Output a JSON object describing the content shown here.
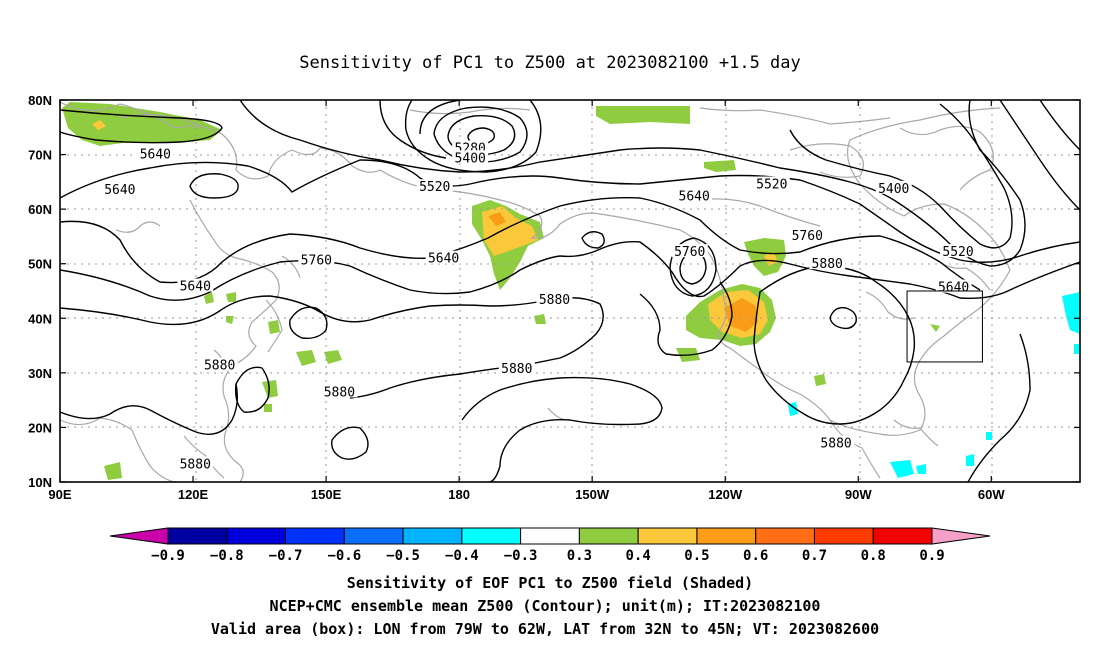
{
  "title": "Sensitivity of PC1 to Z500 at 2023082100 +1.5 day",
  "map": {
    "lat_labels": [
      "80N",
      "70N",
      "60N",
      "50N",
      "40N",
      "30N",
      "20N",
      "10N"
    ],
    "lon_labels": [
      "90E",
      "120E",
      "150E",
      "180",
      "150W",
      "120W",
      "90W",
      "60W"
    ],
    "contour_labels": [
      {
        "text": "5640",
        "lon": 111.5,
        "lat": 70.2
      },
      {
        "text": "5640",
        "lon": 103.5,
        "lat": 63.7
      },
      {
        "text": "5640",
        "lon": 120.5,
        "lat": 46.0
      },
      {
        "text": "5760",
        "lon": 147.8,
        "lat": 50.8
      },
      {
        "text": "5640",
        "lon": 176.5,
        "lat": 51.1
      },
      {
        "text": "5280",
        "lon": 182.5,
        "lat": 71.3
      },
      {
        "text": "5400",
        "lon": 182.5,
        "lat": 69.5
      },
      {
        "text": "5520",
        "lon": 174.5,
        "lat": 64.2
      },
      {
        "text": "5640",
        "lon": 233.0,
        "lat": 62.5
      },
      {
        "text": "5520",
        "lon": 250.5,
        "lat": 64.7
      },
      {
        "text": "5400",
        "lon": 278.0,
        "lat": 63.9
      },
      {
        "text": "5760",
        "lon": 232.0,
        "lat": 52.3
      },
      {
        "text": "5760",
        "lon": 258.5,
        "lat": 55.3
      },
      {
        "text": "5880",
        "lon": 263.0,
        "lat": 50.1
      },
      {
        "text": "5520",
        "lon": 292.5,
        "lat": 52.3
      },
      {
        "text": "5640",
        "lon": 291.5,
        "lat": 45.8
      },
      {
        "text": "5880",
        "lon": 201.5,
        "lat": 43.5
      },
      {
        "text": "5880",
        "lon": 126.0,
        "lat": 31.5
      },
      {
        "text": "5880",
        "lon": 153.0,
        "lat": 26.6
      },
      {
        "text": "5880",
        "lon": 193.0,
        "lat": 30.9
      },
      {
        "text": "5880",
        "lon": 120.5,
        "lat": 13.4
      },
      {
        "text": "5880",
        "lon": 265.0,
        "lat": 17.2
      }
    ],
    "valid_box": {
      "lon_west": 281,
      "lon_east": 298,
      "lat_south": 32,
      "lat_north": 45
    },
    "shading_colors": {
      "pos_0.3_0.4": "#8fcc3f",
      "pos_0.4_0.5": "#fbc83c",
      "pos_0.5_0.6": "#f99d18",
      "neg_0.4_0.3": "#00ffff"
    }
  },
  "colorbar": {
    "labels": [
      "−0.9",
      "−0.8",
      "−0.7",
      "−0.6",
      "−0.5",
      "−0.4",
      "−0.3",
      "0.3",
      "0.4",
      "0.5",
      "0.6",
      "0.7",
      "0.8",
      "0.9"
    ],
    "low_arrow_color": "#c800aa",
    "high_arrow_color": "#f5a0c8",
    "colors": [
      "#0000a0",
      "#0000dc",
      "#0032ff",
      "#0a6eff",
      "#00b4ff",
      "#00ffff",
      "#ffffff",
      "#8fcc3f",
      "#fbc83c",
      "#f99d18",
      "#ff6e14",
      "#ff3c00",
      "#f00000"
    ]
  },
  "footer": {
    "line1": "Sensitivity of EOF PC1 to Z500 field (Shaded)",
    "line2": "NCEP+CMC ensemble mean Z500 (Contour); unit(m); IT:2023082100",
    "line3": "Valid area (box): LON from 79W to 62W, LAT from 32N to 45N; VT: 2023082600"
  }
}
